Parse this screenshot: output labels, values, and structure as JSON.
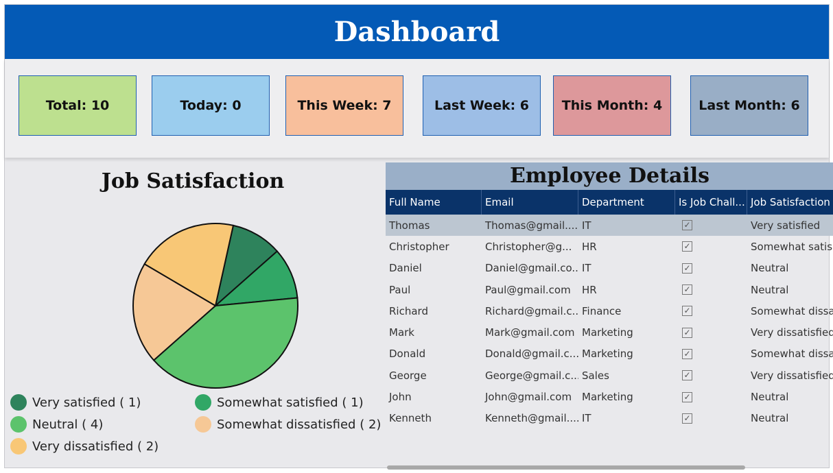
{
  "header": {
    "title": "Dashboard"
  },
  "kpis": [
    {
      "label": "Total: 10",
      "color": "#bde08f"
    },
    {
      "label": "Today: 0",
      "color": "#9bcdee"
    },
    {
      "label": "This Week: 7",
      "color": "#f8bf9c"
    },
    {
      "label": "Last Week: 6",
      "color": "#9dbee6"
    },
    {
      "label": "This Month: 4",
      "color": "#dd989b"
    },
    {
      "label": "Last Month: 6",
      "color": "#99aec6"
    }
  ],
  "chart_data": {
    "type": "pie",
    "title": "Job Satisfaction",
    "slices": [
      {
        "name": "Very satisfied",
        "value": 1,
        "color": "#2e835c",
        "legend": "Very satisfied ( 1)"
      },
      {
        "name": "Somewhat satisfied",
        "value": 1,
        "color": "#31a766",
        "legend": "Somewhat satisfied ( 1)"
      },
      {
        "name": "Neutral",
        "value": 4,
        "color": "#5cc36c",
        "legend": "Neutral ( 4)"
      },
      {
        "name": "Somewhat dissatisfied",
        "value": 2,
        "color": "#f6c896",
        "legend": "Somewhat dissatisfied ( 2)"
      },
      {
        "name": "Very dissatisfied",
        "value": 2,
        "color": "#f8c776",
        "legend": "Very dissatisfied ( 2)"
      }
    ]
  },
  "table": {
    "title": "Employee Details",
    "columns": [
      "Full Name",
      "Email",
      "Department",
      "Is Job Chall...",
      "Job Satisfaction"
    ],
    "rows": [
      [
        "Thomas",
        "Thomas@gmail....",
        "IT",
        "Very satisfied"
      ],
      [
        "Christopher",
        "Christopher@g...",
        "HR",
        "Somewhat satis.."
      ],
      [
        "Daniel",
        "Daniel@gmail.co...",
        "IT",
        "Neutral"
      ],
      [
        "Paul",
        "Paul@gmail.com",
        "HR",
        "Neutral"
      ],
      [
        "Richard",
        "Richard@gmail.c...",
        "Finance",
        "Somewhat dissa.."
      ],
      [
        "Mark",
        "Mark@gmail.com",
        "Marketing",
        "Very dissatisfied"
      ],
      [
        "Donald",
        "Donald@gmail.c...",
        "Marketing",
        "Somewhat dissa.."
      ],
      [
        "George",
        "George@gmail.c...",
        "Sales",
        "Very dissatisfied"
      ],
      [
        "John",
        "John@gmail.com",
        "Marketing",
        "Neutral"
      ],
      [
        "Kenneth",
        "Kenneth@gmail....",
        "IT",
        "Neutral"
      ]
    ],
    "checked": [
      true,
      true,
      true,
      true,
      true,
      true,
      true,
      true,
      true,
      true
    ]
  }
}
